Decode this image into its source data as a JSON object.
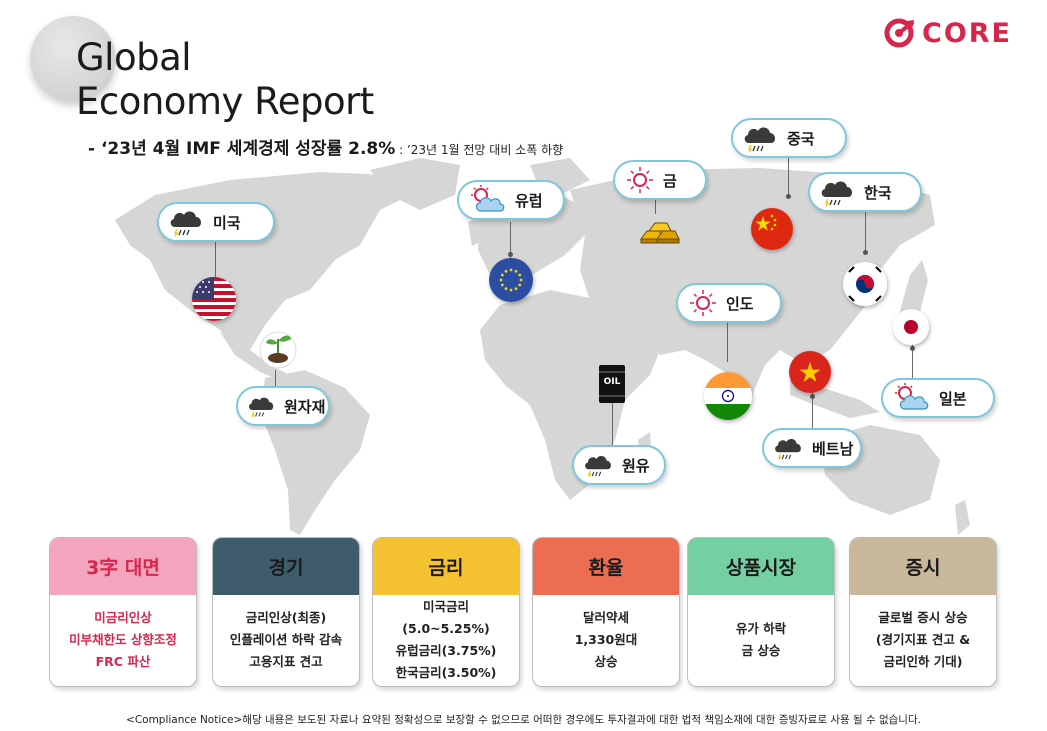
{
  "title": "Global\nEconomy Report",
  "subtitle": {
    "main": "- ‘23년 4월 IMF 세계경제 성장률 2.8%",
    "note": " : ’23년 1월 전망 대비 소폭 하향"
  },
  "brand": {
    "name": "CORE",
    "color": "#d6264b"
  },
  "map_labels": {
    "usa": {
      "label": "미국",
      "icon": "rain-cloud-icon"
    },
    "commodity": {
      "label": "원자재",
      "icon": "rain-cloud-icon"
    },
    "europe": {
      "label": "유럽",
      "icon": "sun-cloud-icon"
    },
    "gold": {
      "label": "금",
      "icon": "sun-icon"
    },
    "china": {
      "label": "중국",
      "icon": "rain-cloud-icon"
    },
    "korea": {
      "label": "한국",
      "icon": "rain-cloud-icon"
    },
    "india": {
      "label": "인도",
      "icon": "sun-icon"
    },
    "japan": {
      "label": "일본",
      "icon": "sun-cloud-icon"
    },
    "vietnam": {
      "label": "베트남",
      "icon": "rain-cloud-icon"
    },
    "oil": {
      "label": "원유",
      "icon": "rain-cloud-icon"
    },
    "oil_barrel_text": "OIL"
  },
  "cards": [
    {
      "title": "3字 대면",
      "color": "#f2a5bd",
      "title_color": "#d6264b",
      "body_color": "#d6264b",
      "lines": [
        "미금리인상",
        "미부채한도 상향조정",
        "FRC 파산"
      ]
    },
    {
      "title": "경기",
      "color": "#3f5c6b",
      "title_color": "#1a1a1a",
      "body_color": "#222222",
      "lines": [
        "금리인상(최종)",
        "인플레이션 하락 감속",
        "고용지표 견고"
      ]
    },
    {
      "title": "금리",
      "color": "#f4c130",
      "title_color": "#1a1a1a",
      "body_color": "#222222",
      "lines": [
        "미국금리",
        "(5.0~5.25%)",
        "유럽금리(3.75%)",
        "한국금리(3.50%)"
      ]
    },
    {
      "title": "환율",
      "color": "#ec6d52",
      "title_color": "#1a1a1a",
      "body_color": "#222222",
      "lines": [
        "달러약세",
        "1,330원대",
        "상승"
      ]
    },
    {
      "title": "상품시장",
      "color": "#74cfa3",
      "title_color": "#1a1a1a",
      "body_color": "#222222",
      "lines": [
        "유가 하락",
        "금 상승"
      ]
    },
    {
      "title": "증시",
      "color": "#c9b89c",
      "title_color": "#1a1a1a",
      "body_color": "#222222",
      "lines": [
        "글로벌 증시 상승",
        "(경기지표 견고 &",
        "금리인하 기대)"
      ]
    }
  ],
  "footer": "<Compliance Notice>해당 내용은 보도된 자료나 요약된 정확성으로 보장할 수 없으므로 어떠한 경우에도 투자결과에 대한 법적 책임소재에 대한 증빙자료로 사용 될 수 없습니다."
}
